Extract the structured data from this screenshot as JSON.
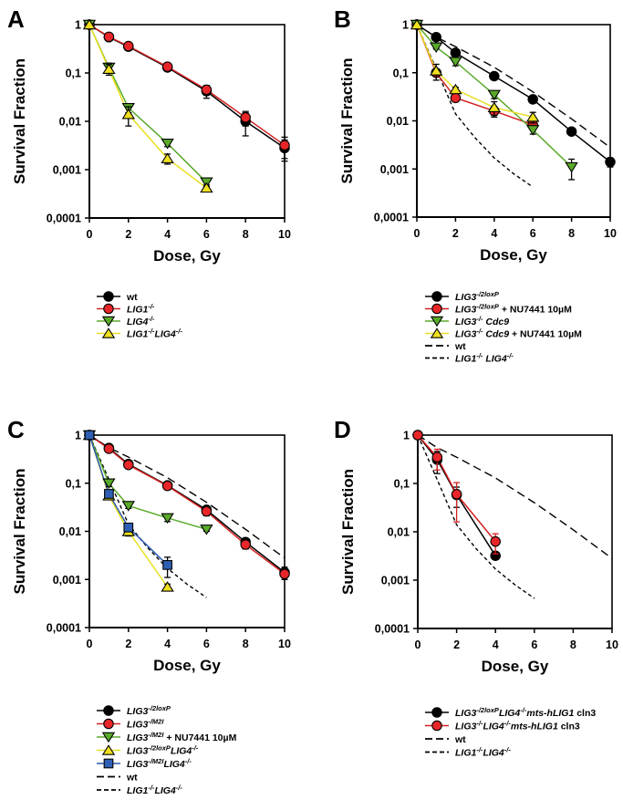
{
  "chart_data": [
    {
      "panel": "A",
      "type": "line",
      "xlabel": "Dose, Gy",
      "ylabel": "Survival Fraction",
      "yscale": "log",
      "xlim": [
        0,
        10
      ],
      "ylim": [
        0.0001,
        1
      ],
      "xticks": [
        "0",
        "2",
        "4",
        "6",
        "8",
        "10"
      ],
      "yticks": [
        "1",
        "0,1",
        "0,01",
        "0,001",
        "0,0001"
      ],
      "legend_position": "below",
      "series": [
        {
          "name": "wt",
          "label_parts": [
            {
              "t": "wt",
              "i": false
            }
          ],
          "color": "#000000",
          "marker": "circle",
          "marker_fill": "#000000",
          "dash": "solid",
          "x": [
            0,
            1,
            2,
            4,
            6,
            8,
            10
          ],
          "y": [
            1,
            0.55,
            0.35,
            0.13,
            0.042,
            0.01,
            0.0028
          ],
          "err": [
            0,
            0.04,
            0.03,
            0.02,
            0.012,
            0.005,
            0.0013
          ]
        },
        {
          "name": "LIG1-/-",
          "label_parts": [
            {
              "t": "LIG1",
              "i": true
            },
            {
              "t": "-/-",
              "i": true,
              "sup": true
            }
          ],
          "color": "#d42020",
          "marker": "circle",
          "marker_fill": "#e8262a",
          "dash": "solid",
          "x": [
            0,
            1,
            2,
            4,
            6,
            8,
            10
          ],
          "y": [
            1,
            0.56,
            0.36,
            0.135,
            0.045,
            0.012,
            0.0032
          ],
          "err": [
            0,
            0.04,
            0.03,
            0.02,
            0.01,
            0.004,
            0.0015
          ]
        },
        {
          "name": "LIG4-/-",
          "label_parts": [
            {
              "t": "LIG4",
              "i": true
            },
            {
              "t": "-/-",
              "i": true,
              "sup": true
            }
          ],
          "color": "#5aaa2a",
          "marker": "triangle-down",
          "marker_fill": "#5aaa2a",
          "dash": "solid",
          "x": [
            0,
            1,
            2,
            4,
            6
          ],
          "y": [
            1,
            0.13,
            0.019,
            0.0035,
            0.00055
          ],
          "err": [
            0,
            0.03,
            0.004,
            0.0005,
            0.0001
          ]
        },
        {
          "name": "LIG1-/-LIG4-/-",
          "label_parts": [
            {
              "t": "LIG1",
              "i": true
            },
            {
              "t": "-/-",
              "i": true,
              "sup": true
            },
            {
              "t": "LIG4",
              "i": true
            },
            {
              "t": "-/-",
              "i": true,
              "sup": true
            }
          ],
          "color": "#e8e020",
          "marker": "triangle-up",
          "marker_fill": "#f0e020",
          "dash": "solid",
          "x": [
            0,
            1,
            2,
            4,
            6
          ],
          "y": [
            1,
            0.12,
            0.014,
            0.0017,
            0.00042
          ],
          "err": [
            0,
            0.03,
            0.006,
            0.0004,
            6e-05
          ]
        }
      ]
    },
    {
      "panel": "B",
      "type": "line",
      "xlabel": "Dose, Gy",
      "ylabel": "Survival Fraction",
      "yscale": "log",
      "xlim": [
        0,
        10
      ],
      "ylim": [
        0.0001,
        1
      ],
      "xticks": [
        "0",
        "2",
        "4",
        "6",
        "8",
        "10"
      ],
      "yticks": [
        "1",
        "0,1",
        "0,01",
        "0,001",
        "0,0001"
      ],
      "legend_position": "below",
      "series": [
        {
          "name": "LIG3-/2loxP",
          "label_parts": [
            {
              "t": "LIG3",
              "i": true
            },
            {
              "t": "-/2loxP",
              "i": true,
              "sup": true
            }
          ],
          "color": "#000000",
          "marker": "circle",
          "marker_fill": "#000000",
          "dash": "solid",
          "x": [
            0,
            1,
            2,
            4,
            6,
            8,
            10
          ],
          "y": [
            1,
            0.55,
            0.26,
            0.085,
            0.028,
            0.006,
            0.0014
          ],
          "err": [
            0,
            0.05,
            0.03,
            0.01,
            0.003,
            0.0008,
            0.0003
          ]
        },
        {
          "name": "LIG3-/2loxP + NU7441 10µM",
          "label_parts": [
            {
              "t": "LIG3",
              "i": true
            },
            {
              "t": "-/2loxP",
              "i": true,
              "sup": true
            },
            {
              "t": " + NU7441 10µM",
              "i": false
            }
          ],
          "color": "#d42020",
          "marker": "circle",
          "marker_fill": "#e8262a",
          "dash": "solid",
          "x": [
            0,
            1,
            2,
            4,
            6
          ],
          "y": [
            1,
            0.1,
            0.03,
            0.016,
            0.0083
          ],
          "err": [
            0,
            0.015,
            0.003,
            0.004,
            0.0015
          ]
        },
        {
          "name": "LIG3-/- Cdc9",
          "label_parts": [
            {
              "t": "LIG3",
              "i": true
            },
            {
              "t": "-/-",
              "i": true,
              "sup": true
            },
            {
              "t": " Cdc9",
              "i": true
            }
          ],
          "color": "#5aaa2a",
          "marker": "triangle-down",
          "marker_fill": "#5aaa2a",
          "dash": "solid",
          "x": [
            0,
            1,
            2,
            4,
            6,
            8
          ],
          "y": [
            1,
            0.34,
            0.17,
            0.035,
            0.0065,
            0.0011
          ],
          "err": [
            0,
            0.03,
            0.03,
            0.006,
            0.0012,
            0.0005
          ]
        },
        {
          "name": "LIG3-/- Cdc9 + NU7441 10µM",
          "label_parts": [
            {
              "t": "LIG3",
              "i": true
            },
            {
              "t": "-/-",
              "i": true,
              "sup": true
            },
            {
              "t": " Cdc9",
              "i": true
            },
            {
              "t": " + NU7441 10µM",
              "i": false
            }
          ],
          "color": "#e8e020",
          "marker": "triangle-up",
          "marker_fill": "#f0e020",
          "dash": "solid",
          "x": [
            0,
            1,
            2,
            4,
            6
          ],
          "y": [
            1,
            0.11,
            0.045,
            0.019,
            0.012
          ],
          "err": [
            0,
            0.04,
            0.005,
            0.006,
            0.003
          ]
        },
        {
          "name": "wt",
          "label_parts": [
            {
              "t": "wt",
              "i": false
            }
          ],
          "color": "#000000",
          "marker": "none",
          "dash": "long",
          "x": [
            0,
            1,
            2,
            4,
            6,
            8,
            10
          ],
          "y": [
            1,
            0.55,
            0.35,
            0.13,
            0.04,
            0.011,
            0.0028
          ]
        },
        {
          "name": "LIG1-/- LIG4-/-",
          "label_parts": [
            {
              "t": "LIG1",
              "i": true
            },
            {
              "t": "-/-",
              "i": true,
              "sup": true
            },
            {
              "t": " LIG4",
              "i": true
            },
            {
              "t": "-/-",
              "i": true,
              "sup": true
            }
          ],
          "color": "#000000",
          "marker": "none",
          "dash": "short",
          "x": [
            0,
            1,
            2,
            3,
            4,
            5,
            6
          ],
          "y": [
            1,
            0.12,
            0.014,
            0.0045,
            0.0017,
            0.0008,
            0.00042
          ]
        }
      ]
    },
    {
      "panel": "C",
      "type": "line",
      "xlabel": "Dose, Gy",
      "ylabel": "Survival Fraction",
      "yscale": "log",
      "xlim": [
        0,
        10
      ],
      "ylim": [
        0.0001,
        1
      ],
      "xticks": [
        "0",
        "2",
        "4",
        "6",
        "8",
        "10"
      ],
      "yticks": [
        "1",
        "0,1",
        "0,01",
        "0,001",
        "0,0001"
      ],
      "legend_position": "below",
      "series": [
        {
          "name": "LIG3-/2loxP",
          "label_parts": [
            {
              "t": "LIG3",
              "i": true
            },
            {
              "t": "-/2loxP",
              "i": true,
              "sup": true
            }
          ],
          "color": "#000000",
          "marker": "circle",
          "marker_fill": "#000000",
          "dash": "solid",
          "x": [
            0,
            1,
            2,
            4,
            6,
            8,
            10
          ],
          "y": [
            1,
            0.54,
            0.25,
            0.09,
            0.028,
            0.006,
            0.0014
          ],
          "err": [
            0,
            0.04,
            0.02,
            0.01,
            0.005,
            0.001,
            0.0004
          ]
        },
        {
          "name": "LIG3-/M2I",
          "label_parts": [
            {
              "t": "LIG3",
              "i": true
            },
            {
              "t": "-/M2I",
              "i": true,
              "sup": true
            }
          ],
          "color": "#d42020",
          "marker": "circle",
          "marker_fill": "#e8262a",
          "dash": "solid",
          "x": [
            0,
            1,
            2,
            4,
            6,
            8,
            10
          ],
          "y": [
            1,
            0.52,
            0.24,
            0.088,
            0.026,
            0.0053,
            0.0013
          ],
          "err": [
            0,
            0.04,
            0.02,
            0.01,
            0.005,
            0.001,
            0.0003
          ]
        },
        {
          "name": "LIG3-/M2I + NU7441 10µM",
          "label_parts": [
            {
              "t": "LIG3",
              "i": true
            },
            {
              "t": "-/M2I",
              "i": true,
              "sup": true
            },
            {
              "t": " + NU7441 10µM",
              "i": false
            }
          ],
          "color": "#5aaa2a",
          "marker": "triangle-down",
          "marker_fill": "#5aaa2a",
          "dash": "solid",
          "x": [
            0,
            1,
            2,
            4,
            6
          ],
          "y": [
            1,
            0.1,
            0.034,
            0.019,
            0.011
          ],
          "err": [
            0,
            0.015,
            0.004,
            0.003,
            0.001
          ]
        },
        {
          "name": "LIG3-/2loxP LIG4-/-",
          "label_parts": [
            {
              "t": "LIG3",
              "i": true
            },
            {
              "t": "-/2loxP",
              "i": true,
              "sup": true
            },
            {
              "t": "LIG4",
              "i": true
            },
            {
              "t": "-/-",
              "i": true,
              "sup": true
            }
          ],
          "color": "#e8e020",
          "marker": "triangle-up",
          "marker_fill": "#f0e020",
          "dash": "solid",
          "x": [
            0,
            1,
            2,
            4
          ],
          "y": [
            1,
            0.055,
            0.01,
            0.0007
          ],
          "err": [
            0,
            0.008,
            0.002,
            0.0001
          ]
        },
        {
          "name": "LIG3-/M2I LIG4-/-",
          "label_parts": [
            {
              "t": "LIG3",
              "i": true
            },
            {
              "t": "-/M2I",
              "i": true,
              "sup": true
            },
            {
              "t": "LIG4",
              "i": true
            },
            {
              "t": "-/-",
              "i": true,
              "sup": true
            }
          ],
          "color": "#2a5ab0",
          "marker": "square",
          "marker_fill": "#2f5fb5",
          "dash": "solid",
          "x": [
            0,
            1,
            2,
            4
          ],
          "y": [
            1,
            0.06,
            0.012,
            0.002
          ],
          "err": [
            0,
            0.008,
            0.002,
            0.0009
          ]
        },
        {
          "name": "wt",
          "label_parts": [
            {
              "t": "wt",
              "i": false
            }
          ],
          "color": "#000000",
          "marker": "none",
          "dash": "long",
          "x": [
            0,
            1,
            2,
            4,
            6,
            8,
            10
          ],
          "y": [
            1,
            0.55,
            0.35,
            0.13,
            0.04,
            0.011,
            0.0028
          ]
        },
        {
          "name": "LIG1-/-LIG4-/-",
          "label_parts": [
            {
              "t": "LIG1",
              "i": true
            },
            {
              "t": "-/-",
              "i": true,
              "sup": true
            },
            {
              "t": "LIG4",
              "i": true
            },
            {
              "t": "-/-",
              "i": true,
              "sup": true
            }
          ],
          "color": "#000000",
          "marker": "none",
          "dash": "short",
          "x": [
            0,
            1,
            2,
            3,
            4,
            5,
            6
          ],
          "y": [
            1,
            0.12,
            0.014,
            0.0045,
            0.0017,
            0.0008,
            0.00042
          ]
        }
      ]
    },
    {
      "panel": "D",
      "type": "line",
      "xlabel": "Dose, Gy",
      "ylabel": "Survival Fraction",
      "yscale": "log",
      "xlim": [
        0,
        10
      ],
      "ylim": [
        0.0001,
        1
      ],
      "xticks": [
        "0",
        "2",
        "4",
        "6",
        "8",
        "10"
      ],
      "yticks": [
        "1",
        "0,1",
        "0,01",
        "0,001",
        "0,0001"
      ],
      "legend_position": "below",
      "series": [
        {
          "name": "LIG3-/2loxP LIG4-/- mts-hLIG1 cln3",
          "label_parts": [
            {
              "t": "LIG3",
              "i": true
            },
            {
              "t": "-/2loxP",
              "i": true,
              "sup": true
            },
            {
              "t": "LIG4",
              "i": true
            },
            {
              "t": "-/-",
              "i": true,
              "sup": true
            },
            {
              "t": "mts-hLIG1",
              "i": true
            },
            {
              "t": " cln3",
              "i": false
            }
          ],
          "color": "#000000",
          "marker": "circle",
          "marker_fill": "#000000",
          "dash": "solid",
          "x": [
            0,
            1,
            2,
            4
          ],
          "y": [
            1,
            0.31,
            0.058,
            0.0032
          ],
          "err": [
            0,
            0.15,
            0.026,
            0.0005
          ]
        },
        {
          "name": "LIG3-/- LIG4-/- mts-hLIG1 cln3",
          "label_parts": [
            {
              "t": "LIG3",
              "i": true
            },
            {
              "t": "-/-",
              "i": true,
              "sup": true
            },
            {
              "t": "LIG4",
              "i": true
            },
            {
              "t": "-/-",
              "i": true,
              "sup": true
            },
            {
              "t": "mts-hLIG1",
              "i": true
            },
            {
              "t": " cln3",
              "i": false
            }
          ],
          "color": "#d42020",
          "marker": "circle",
          "marker_fill": "#e8262a",
          "dash": "solid",
          "x": [
            0,
            1,
            2,
            4
          ],
          "y": [
            1,
            0.35,
            0.06,
            0.0063
          ],
          "err": [
            0,
            0.16,
            0.044,
            0.0028
          ]
        },
        {
          "name": "wt",
          "label_parts": [
            {
              "t": "wt",
              "i": false
            }
          ],
          "color": "#000000",
          "marker": "none",
          "dash": "long",
          "x": [
            0,
            1,
            2,
            4,
            6,
            8,
            10
          ],
          "y": [
            1,
            0.55,
            0.35,
            0.13,
            0.04,
            0.011,
            0.0028
          ]
        },
        {
          "name": "LIG1-/-LIG4-/-",
          "label_parts": [
            {
              "t": "LIG1",
              "i": true
            },
            {
              "t": "-/-",
              "i": true,
              "sup": true
            },
            {
              "t": "LIG4",
              "i": true
            },
            {
              "t": "-/-",
              "i": true,
              "sup": true
            }
          ],
          "color": "#000000",
          "marker": "none",
          "dash": "short",
          "x": [
            0,
            1,
            2,
            3,
            4,
            5,
            6
          ],
          "y": [
            1,
            0.12,
            0.014,
            0.0045,
            0.0017,
            0.0008,
            0.00042
          ]
        }
      ]
    }
  ]
}
